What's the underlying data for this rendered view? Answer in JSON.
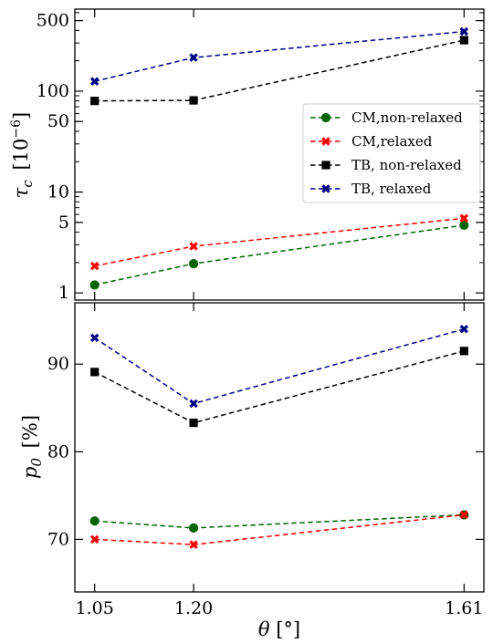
{
  "chart_data": [
    {
      "type": "line",
      "title": "",
      "xlabel": "",
      "ylabel": "τ_c [10^-6]",
      "ylabel_parts": {
        "symbol": "τ",
        "sub": "c",
        "bracket_open": "[10",
        "exp": "−6",
        "bracket_close": "]"
      },
      "y_scale": "log",
      "ylim": [
        0.85,
        650
      ],
      "xlim": [
        1.02,
        1.64
      ],
      "x": [
        1.05,
        1.2,
        1.61
      ],
      "y_ticks": [
        1,
        5,
        10,
        50,
        100,
        500
      ],
      "y_tick_labels": [
        "1",
        "5",
        "10",
        "50",
        "100",
        "500"
      ],
      "legend_position": "center-right",
      "series": [
        {
          "name": "CM,non-relaxed",
          "color": "#006400",
          "marker": "circle",
          "values": [
            1.2,
            1.95,
            4.7
          ]
        },
        {
          "name": "CM,relaxed",
          "color": "#ff0000",
          "marker": "x",
          "values": [
            1.85,
            2.9,
            5.5
          ]
        },
        {
          "name": "TB, non-relaxed",
          "color": "#000000",
          "marker": "square",
          "values": [
            80,
            81,
            320
          ]
        },
        {
          "name": "TB, relaxed",
          "color": "#000080",
          "marker": "x",
          "values": [
            125,
            215,
            390
          ]
        }
      ]
    },
    {
      "type": "line",
      "title": "",
      "xlabel": "θ [°]",
      "xlabel_parts": {
        "symbol": "θ",
        "unit": "[°]"
      },
      "ylabel": "p_0 [%]",
      "ylabel_parts": {
        "symbol": "p",
        "sub": "0",
        "unit": "[%]"
      },
      "ylim": [
        64,
        97
      ],
      "xlim": [
        1.02,
        1.64
      ],
      "x": [
        1.05,
        1.2,
        1.61
      ],
      "x_ticks": [
        1.05,
        1.2,
        1.61
      ],
      "x_tick_labels": [
        "1.05",
        "1.20",
        "1.61"
      ],
      "y_ticks": [
        70,
        80,
        90
      ],
      "y_tick_labels": [
        "70",
        "80",
        "90"
      ],
      "series": [
        {
          "name": "TB, relaxed",
          "color": "#000080",
          "marker": "x",
          "values": [
            93.0,
            85.5,
            94.0
          ]
        },
        {
          "name": "TB, non-relaxed",
          "color": "#000000",
          "marker": "square",
          "values": [
            89.1,
            83.3,
            91.5
          ]
        },
        {
          "name": "CM,non-relaxed",
          "color": "#006400",
          "marker": "circle",
          "values": [
            72.1,
            71.3,
            72.8
          ]
        },
        {
          "name": "CM,relaxed",
          "color": "#ff0000",
          "marker": "x",
          "values": [
            70.0,
            69.4,
            72.8
          ]
        }
      ]
    }
  ]
}
